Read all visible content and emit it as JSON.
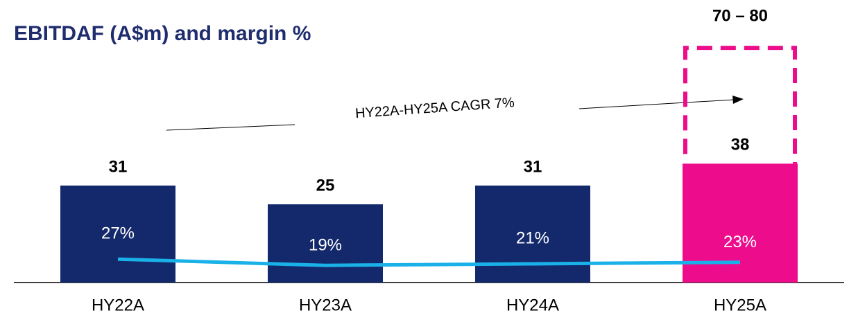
{
  "chart_data": {
    "type": "bar",
    "title": "EBITDAF (A$m) and margin %",
    "categories": [
      "HY22A",
      "HY23A",
      "HY24A",
      "HY25A"
    ],
    "values": [
      31,
      25,
      31,
      38
    ],
    "colors": [
      "#13296b",
      "#13296b",
      "#13296b",
      "#ec0c8c"
    ],
    "ylim": [
      0,
      85
    ],
    "margin": {
      "values": [
        27,
        19,
        21,
        23
      ],
      "value_labels": [
        "27%",
        "19%",
        "21%",
        "23%"
      ],
      "color": "#1ab0e8",
      "axis": "y2"
    },
    "y2lim": [
      -3,
      338
    ],
    "target": {
      "label": "70 – 80",
      "values": [
        70,
        80
      ],
      "color": "#ec0c8c"
    },
    "annotation": "HY22A-HY25A CAGR 7%"
  }
}
